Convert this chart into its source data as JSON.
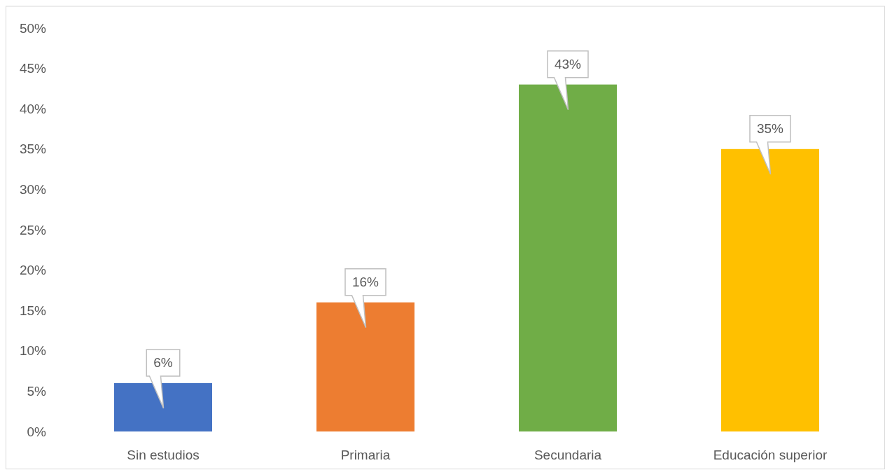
{
  "chart_data": {
    "type": "bar",
    "categories": [
      "Sin estudios",
      "Primaria",
      "Secundaria",
      "Educación superior"
    ],
    "values": [
      6,
      16,
      43,
      35
    ],
    "colors": [
      "#4472c4",
      "#ed7d31",
      "#70ad47",
      "#ffc000"
    ],
    "value_labels": [
      "6%",
      "16%",
      "43%",
      "35%"
    ],
    "ylim": [
      0,
      50
    ],
    "yticks": [
      {
        "value": 0,
        "label": "0%"
      },
      {
        "value": 5,
        "label": "5%"
      },
      {
        "value": 10,
        "label": "10%"
      },
      {
        "value": 15,
        "label": "15%"
      },
      {
        "value": 20,
        "label": "20%"
      },
      {
        "value": 25,
        "label": "25%"
      },
      {
        "value": 30,
        "label": "30%"
      },
      {
        "value": 35,
        "label": "35%"
      },
      {
        "value": 40,
        "label": "40%"
      },
      {
        "value": 45,
        "label": "45%"
      },
      {
        "value": 50,
        "label": "50%"
      }
    ]
  }
}
